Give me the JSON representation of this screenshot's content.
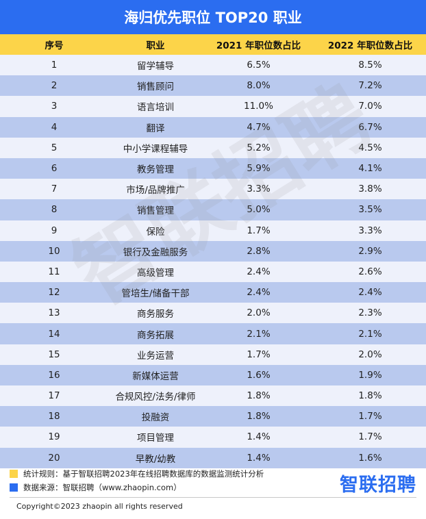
{
  "title": "海归优先职位 TOP20 职业",
  "headers": {
    "rank": "序号",
    "job": "职业",
    "y2021": "2021 年职位数占比",
    "y2022": "2022 年职位数占比"
  },
  "chart_data": {
    "type": "table",
    "title": "海归优先职位 TOP20 职业",
    "columns": [
      "序号",
      "职业",
      "2021 年职位数占比",
      "2022 年职位数占比"
    ],
    "rows": [
      [
        "1",
        "留学辅导",
        "6.5%",
        "8.5%"
      ],
      [
        "2",
        "销售顾问",
        "8.0%",
        "7.2%"
      ],
      [
        "3",
        "语言培训",
        "11.0%",
        "7.0%"
      ],
      [
        "4",
        "翻译",
        "4.7%",
        "6.7%"
      ],
      [
        "5",
        "中小学课程辅导",
        "5.2%",
        "4.5%"
      ],
      [
        "6",
        "教务管理",
        "5.9%",
        "4.1%"
      ],
      [
        "7",
        "市场/品牌推广",
        "3.3%",
        "3.8%"
      ],
      [
        "8",
        "销售管理",
        "5.0%",
        "3.5%"
      ],
      [
        "9",
        "保险",
        "1.7%",
        "3.3%"
      ],
      [
        "10",
        "银行及金融服务",
        "2.8%",
        "2.9%"
      ],
      [
        "11",
        "高级管理",
        "2.4%",
        "2.6%"
      ],
      [
        "12",
        "管培生/储备干部",
        "2.4%",
        "2.4%"
      ],
      [
        "13",
        "商务服务",
        "2.0%",
        "2.3%"
      ],
      [
        "14",
        "商务拓展",
        "2.1%",
        "2.1%"
      ],
      [
        "15",
        "业务运营",
        "1.7%",
        "2.0%"
      ],
      [
        "16",
        "新媒体运营",
        "1.6%",
        "1.9%"
      ],
      [
        "17",
        "合规风控/法务/律师",
        "1.8%",
        "1.8%"
      ],
      [
        "18",
        "投融资",
        "1.8%",
        "1.7%"
      ],
      [
        "19",
        "项目管理",
        "1.4%",
        "1.7%"
      ],
      [
        "20",
        "早教/幼教",
        "1.4%",
        "1.6%"
      ]
    ]
  },
  "watermark": "智联招聘",
  "notes": {
    "rule": "统计规则：基于智联招聘2023年在线招聘数据库的数据监测统计分析",
    "source": "数据来源：智联招聘（www.zhaopin.com）",
    "rule_color": "#fcd449",
    "source_color": "#2b6df0"
  },
  "brand": "智联招聘",
  "copyright": "Copyright©2023 zhaopin all rights reserved",
  "colors": {
    "title_bg": "#2b6df0",
    "header_bg": "#fcd449",
    "row_light": "#eef1fb",
    "row_dark": "#b9c9ee"
  }
}
